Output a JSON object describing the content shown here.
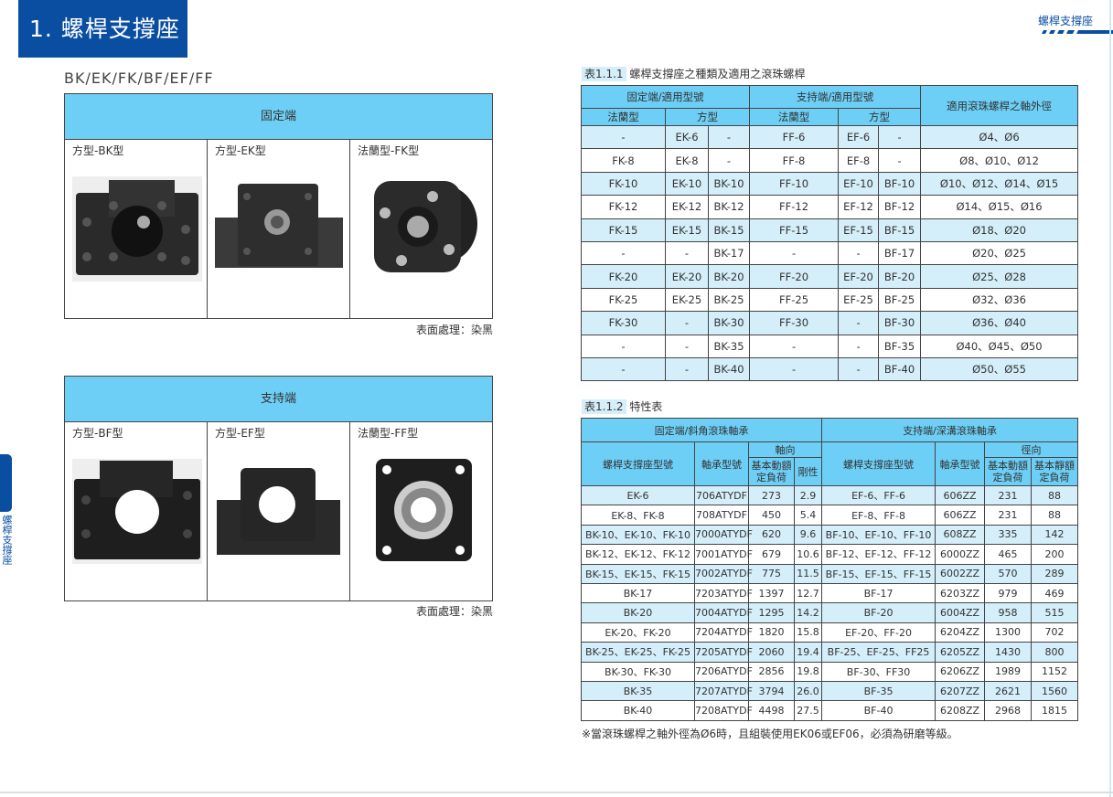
{
  "header": {
    "section_title": "1. 螺桿支撐座",
    "running_header": "螺桿支撐座",
    "side_tab": "螺桿支撐座",
    "series": "BK/EK/FK/BF/EF/FF"
  },
  "colors": {
    "brand_blue": "#0a4ea2",
    "header_cyan": "#6dcff6",
    "row_light": "#d4eefa"
  },
  "fixed_box": {
    "title": "固定端",
    "items": [
      {
        "label": "方型-BK型",
        "icon": "bk-support-unit-photo"
      },
      {
        "label": "方型-EK型",
        "icon": "ek-support-unit-photo"
      },
      {
        "label": "法蘭型-FK型",
        "icon": "fk-support-unit-photo"
      }
    ],
    "note": "表面處理：染黑"
  },
  "support_box": {
    "title": "支持端",
    "items": [
      {
        "label": "方型-BF型",
        "icon": "bf-support-unit-photo"
      },
      {
        "label": "方型-EF型",
        "icon": "ef-support-unit-photo"
      },
      {
        "label": "法蘭型-FF型",
        "icon": "ff-support-unit-photo"
      }
    ],
    "note": "表面處理：染黑"
  },
  "table1": {
    "tag": "表1.1.1",
    "caption": "螺桿支撐座之種類及適用之滾珠螺桿",
    "h_fixed": "固定端/適用型號",
    "h_support": "支持端/適用型號",
    "h_dia": "適用滾珠螺桿之軸外徑",
    "h_flange": "法蘭型",
    "h_square": "方型",
    "rows": [
      [
        "-",
        "EK-6",
        "-",
        "FF-6",
        "EF-6",
        "-",
        "Ø4、Ø6"
      ],
      [
        "FK-8",
        "EK-8",
        "-",
        "FF-8",
        "EF-8",
        "-",
        "Ø8、Ø10、Ø12"
      ],
      [
        "FK-10",
        "EK-10",
        "BK-10",
        "FF-10",
        "EF-10",
        "BF-10",
        "Ø10、Ø12、Ø14、Ø15"
      ],
      [
        "FK-12",
        "EK-12",
        "BK-12",
        "FF-12",
        "EF-12",
        "BF-12",
        "Ø14、Ø15、Ø16"
      ],
      [
        "FK-15",
        "EK-15",
        "BK-15",
        "FF-15",
        "EF-15",
        "BF-15",
        "Ø18、Ø20"
      ],
      [
        "-",
        "-",
        "BK-17",
        "-",
        "-",
        "BF-17",
        "Ø20、Ø25"
      ],
      [
        "FK-20",
        "EK-20",
        "BK-20",
        "FF-20",
        "EF-20",
        "BF-20",
        "Ø25、Ø28"
      ],
      [
        "FK-25",
        "EK-25",
        "BK-25",
        "FF-25",
        "EF-25",
        "BF-25",
        "Ø32、Ø36"
      ],
      [
        "FK-30",
        "-",
        "BK-30",
        "FF-30",
        "-",
        "BF-30",
        "Ø36、Ø40"
      ],
      [
        "-",
        "-",
        "BK-35",
        "-",
        "-",
        "BF-35",
        "Ø40、Ø45、Ø50"
      ],
      [
        "-",
        "-",
        "BK-40",
        "-",
        "-",
        "BF-40",
        "Ø50、Ø55"
      ]
    ]
  },
  "table2": {
    "tag": "表1.1.2",
    "caption": "特性表",
    "h_fixed": "固定端/斜角滾珠軸承",
    "h_support": "支持端/深溝滾珠軸承",
    "h_model": "螺桿支撐座型號",
    "h_bearing": "軸承型號",
    "h_axial": "軸向",
    "h_radial": "徑向",
    "h_dyn": "基本動額定負荷",
    "h_rigid": "剛性",
    "h_static": "基本靜額定負荷",
    "rows": [
      [
        "EK-6",
        "706ATYDF",
        "273",
        "2.9",
        "EF-6、FF-6",
        "606ZZ",
        "231",
        "88"
      ],
      [
        "EK-8、FK-8",
        "708ATYDF",
        "450",
        "5.4",
        "EF-8、FF-8",
        "606ZZ",
        "231",
        "88"
      ],
      [
        "BK-10、EK-10、FK-10",
        "7000ATYDF",
        "620",
        "9.6",
        "BF-10、EF-10、FF-10",
        "608ZZ",
        "335",
        "142"
      ],
      [
        "BK-12、EK-12、FK-12",
        "7001ATYDF",
        "679",
        "10.6",
        "BF-12、EF-12、FF-12",
        "6000ZZ",
        "465",
        "200"
      ],
      [
        "BK-15、EK-15、FK-15",
        "7002ATYDF",
        "775",
        "11.5",
        "BF-15、EF-15、FF-15",
        "6002ZZ",
        "570",
        "289"
      ],
      [
        "BK-17",
        "7203ATYDF",
        "1397",
        "12.7",
        "BF-17",
        "6203ZZ",
        "979",
        "469"
      ],
      [
        "BK-20",
        "7004ATYDF",
        "1295",
        "14.2",
        "BF-20",
        "6004ZZ",
        "958",
        "515"
      ],
      [
        "EK-20、FK-20",
        "7204ATYDF",
        "1820",
        "15.8",
        "EF-20、FF-20",
        "6204ZZ",
        "1300",
        "702"
      ],
      [
        "BK-25、EK-25、FK-25",
        "7205ATYDF",
        "2060",
        "19.4",
        "BF-25、EF-25、FF25",
        "6205ZZ",
        "1430",
        "800"
      ],
      [
        "BK-30、FK-30",
        "7206ATYDF",
        "2856",
        "19.8",
        "BF-30、FF30",
        "6206ZZ",
        "1989",
        "1152"
      ],
      [
        "BK-35",
        "7207ATYDF",
        "3794",
        "26.0",
        "BF-35",
        "6207ZZ",
        "2621",
        "1560"
      ],
      [
        "BK-40",
        "7208ATYDF",
        "4498",
        "27.5",
        "BF-40",
        "6208ZZ",
        "2968",
        "1815"
      ]
    ],
    "footnote": "※當滾珠螺桿之軸外徑為Ø6時，且組裝使用EK06或EF06，必須為研磨等級。"
  }
}
